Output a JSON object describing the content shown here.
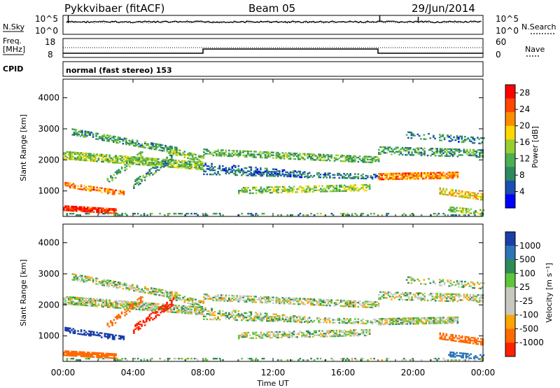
{
  "header": {
    "station": "Pykkvibaer (fitACF)",
    "beam": "Beam 05",
    "date": "29/Jun/2014"
  },
  "panels": {
    "nsky_label": "N.Sky",
    "nsearch_label": "N.Search",
    "freq_label_line1": "Freq.",
    "freq_label_line2": "[MHz]",
    "nave_label": "Nave",
    "cpid_label": "CPID",
    "cpid_value": "normal (fast stereo) 153",
    "noise_left_ticks": [
      "10^5",
      "10^0"
    ],
    "noise_right_ticks": [
      "10^5",
      "10^0"
    ],
    "freq_left_ticks": [
      "18",
      "8"
    ],
    "freq_right_ticks": [
      "60",
      "0"
    ]
  },
  "colors": {
    "power_scale": [
      "#0000ff",
      "#1a4fb0",
      "#2d8a60",
      "#4caf50",
      "#9acd32",
      "#ffd700",
      "#ff8c00",
      "#ff4500",
      "#ff0000"
    ],
    "velocity_scale": [
      "#1a3fa8",
      "#2e75b8",
      "#2e8b57",
      "#5ec63a",
      "#c8c8c0",
      "#c8c8c0",
      "#ffa500",
      "#ff6a00",
      "#ff2000"
    ]
  },
  "chart_data": [
    {
      "type": "heatmap",
      "name": "power",
      "ylabel": "Slant Range [km]",
      "ylim": [
        180,
        4600
      ],
      "yticks": [
        "1000",
        "2000",
        "3000",
        "4000"
      ],
      "yticks_values": [
        1000,
        2000,
        3000,
        4000
      ],
      "xlim_hours": [
        0,
        24
      ],
      "colorbar_label": "Power [dB]",
      "colorbar_ticks": [
        "4",
        "8",
        "12",
        "16",
        "20",
        "24",
        "28"
      ],
      "colorbar_range": [
        0,
        30
      ]
    },
    {
      "type": "heatmap",
      "name": "velocity",
      "ylabel": "Slant Range [km]",
      "ylim": [
        180,
        4600
      ],
      "yticks": [
        "1000",
        "2000",
        "3000",
        "4000"
      ],
      "yticks_values": [
        1000,
        2000,
        3000,
        4000
      ],
      "xlim_hours": [
        0,
        24
      ],
      "colorbar_label": "Velocity [m s⁻¹]",
      "colorbar_ticks": [
        "1000",
        "500",
        "100",
        "25",
        "-25",
        "-100",
        "-500",
        "-1000"
      ]
    }
  ],
  "xaxis": {
    "label": "Time UT",
    "ticks": [
      "00:00",
      "04:00",
      "08:00",
      "12:00",
      "16:00",
      "20:00",
      "00:00"
    ],
    "ticks_hours": [
      0,
      4,
      8,
      12,
      16,
      20,
      24
    ]
  }
}
